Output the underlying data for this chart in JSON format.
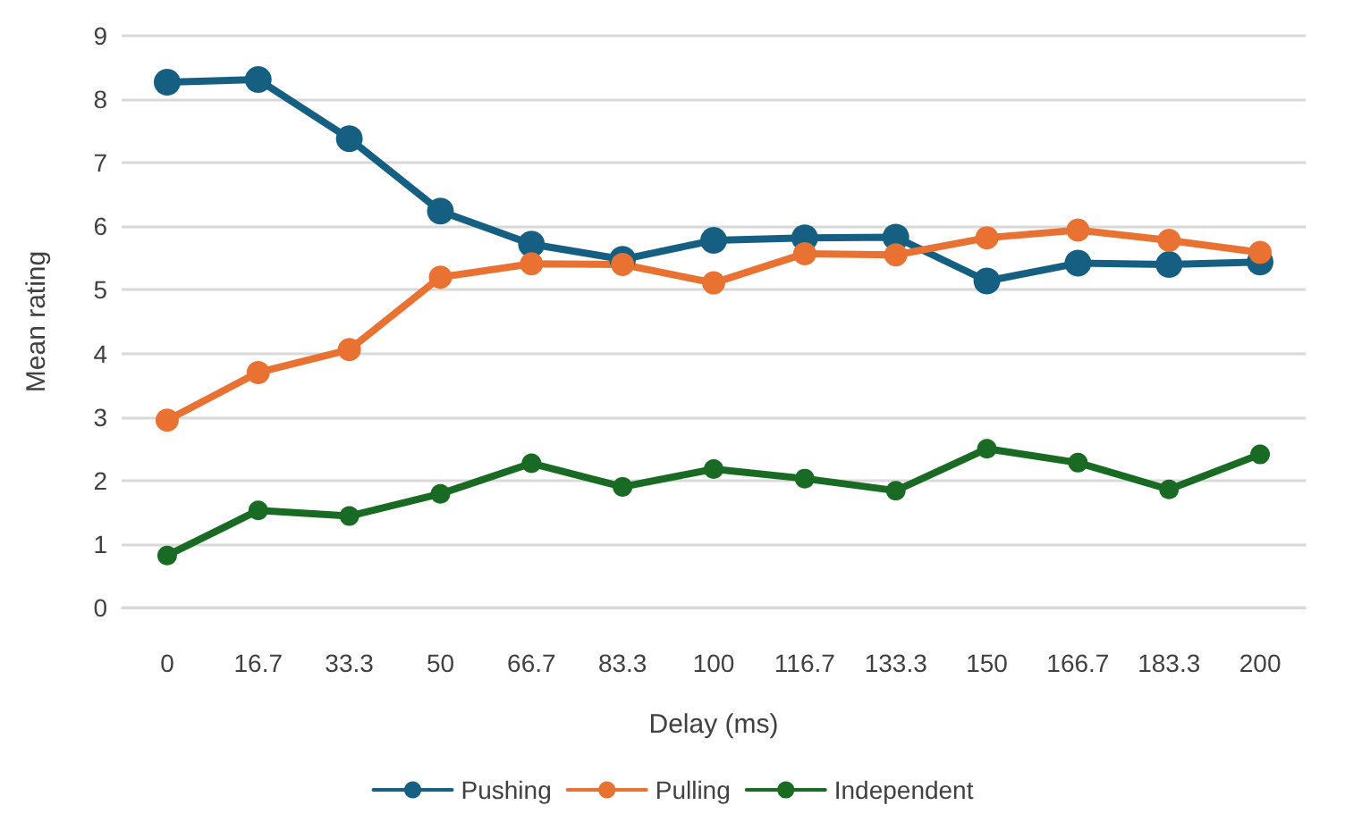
{
  "chart_data": {
    "type": "line",
    "xlabel": "Delay (ms)",
    "ylabel": "Mean rating",
    "categories": [
      "0",
      "16.7",
      "33.3",
      "50",
      "66.7",
      "83.3",
      "100",
      "116.7",
      "133.3",
      "150",
      "166.7",
      "183.3",
      "200"
    ],
    "series": [
      {
        "name": "Pushing",
        "color": "#156082",
        "values": [
          8.27,
          8.31,
          7.38,
          6.24,
          5.72,
          5.48,
          5.78,
          5.82,
          5.83,
          5.14,
          5.42,
          5.4,
          5.44
        ]
      },
      {
        "name": "Pulling",
        "color": "#e97132",
        "values": [
          2.95,
          3.7,
          4.06,
          5.2,
          5.41,
          5.4,
          5.11,
          5.57,
          5.55,
          5.82,
          5.94,
          5.78,
          5.59
        ]
      },
      {
        "name": "Independent",
        "color": "#196b24",
        "values": [
          0.82,
          1.53,
          1.44,
          1.79,
          2.27,
          1.9,
          2.18,
          2.03,
          1.84,
          2.5,
          2.28,
          1.86,
          2.41
        ]
      }
    ],
    "ylim": [
      0,
      9
    ],
    "yticks": [
      0,
      1,
      2,
      3,
      4,
      5,
      6,
      7,
      8,
      9
    ],
    "grid": "y",
    "legend": "bottom",
    "marker": "circle",
    "line_style": "solid"
  }
}
